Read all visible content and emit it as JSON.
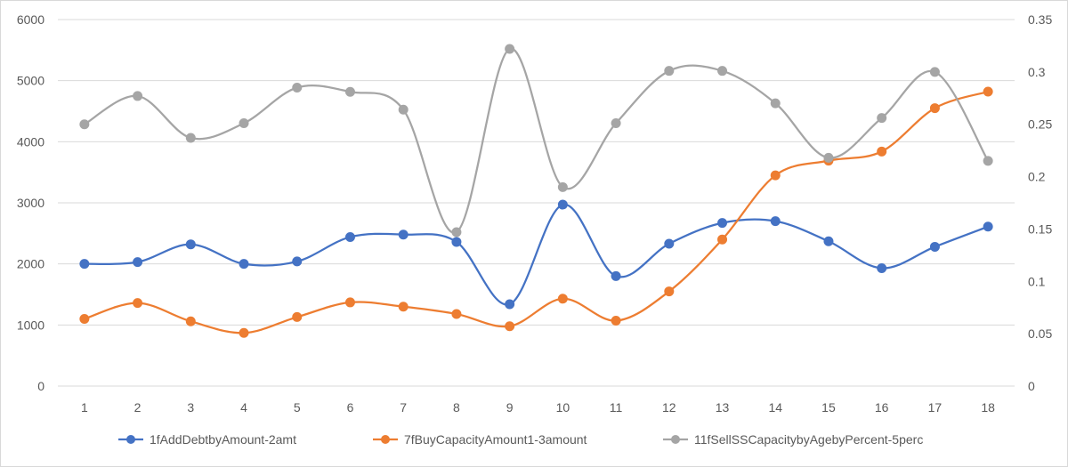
{
  "chart_data": {
    "type": "line",
    "title": "",
    "xlabel": "",
    "ylabel": "",
    "categories": [
      "1",
      "2",
      "3",
      "4",
      "5",
      "6",
      "7",
      "8",
      "9",
      "10",
      "11",
      "12",
      "13",
      "14",
      "15",
      "16",
      "17",
      "18"
    ],
    "ylim": [
      0,
      6000
    ],
    "y_ticks": [
      "0",
      "1000",
      "2000",
      "3000",
      "4000",
      "5000",
      "6000"
    ],
    "y2lim": [
      0,
      0.35
    ],
    "y2_ticks": [
      "0",
      "0.05",
      "0.1",
      "0.15",
      "0.2",
      "0.25",
      "0.3",
      "0.35"
    ],
    "grid": "horizontal",
    "legend": "bottom",
    "smooth": true,
    "series": [
      {
        "name": "1fAddDebtbyAmount-2amt",
        "axis": "left",
        "color": "#4472C4",
        "values": [
          2000,
          2030,
          2320,
          2000,
          2040,
          2440,
          2480,
          2360,
          1340,
          2970,
          1800,
          2330,
          2670,
          2700,
          2370,
          1930,
          2280,
          2610
        ]
      },
      {
        "name": "7fBuyCapacityAmount1-3amount",
        "axis": "left",
        "color": "#ED7D31",
        "values": [
          1100,
          1360,
          1060,
          870,
          1130,
          1370,
          1300,
          1180,
          980,
          1430,
          1070,
          1550,
          2400,
          3450,
          3690,
          3840,
          4550,
          4820
        ]
      },
      {
        "name": "11fSellSSCapacitybyAgebyPercent-5perc",
        "axis": "right",
        "color": "#A5A5A5",
        "values": [
          0.25,
          0.277,
          0.237,
          0.251,
          0.285,
          0.281,
          0.264,
          0.147,
          0.322,
          0.19,
          0.251,
          0.301,
          0.301,
          0.27,
          0.218,
          0.256,
          0.3,
          0.215
        ]
      }
    ]
  }
}
